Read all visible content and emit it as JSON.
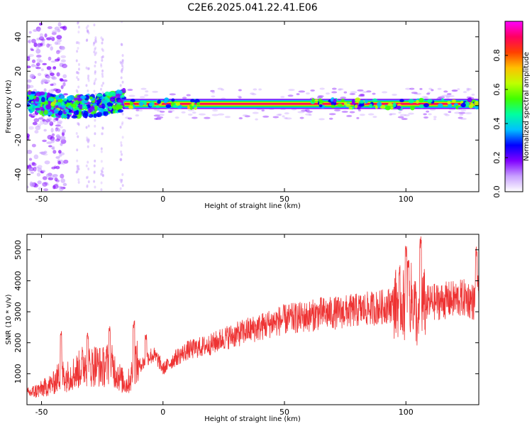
{
  "figure": {
    "title": "C2E6.2025.041.22.41.E06"
  },
  "chart_data": [
    {
      "type": "heatmap",
      "title": "C2E6.2025.041.22.41.E06",
      "xlabel": "Height of straight line (km)",
      "ylabel": "Frequency (Hz)",
      "xlim": [
        -56,
        130
      ],
      "ylim": [
        -50,
        49
      ],
      "xticks": [
        -50,
        0,
        50,
        100
      ],
      "yticks": [
        -40,
        -20,
        0,
        20,
        40
      ],
      "colorbar": {
        "label": "Normalized spectral amplitude",
        "range": [
          0,
          1
        ],
        "ticks": [
          0.0,
          0.2,
          0.4,
          0.6,
          0.8
        ],
        "colormap": [
          "#ffffff",
          "#c8a0ff",
          "#8000ff",
          "#0000ff",
          "#00c0ff",
          "#00ffa0",
          "#40ff00",
          "#c0ff00",
          "#ffc000",
          "#ff4000",
          "#ff0060",
          "#ff00ff"
        ]
      },
      "features": [
        {
          "x_start": -56,
          "x_end": -16,
          "freq_center": 0,
          "freq_halfwidth": 6,
          "amplitude": 0.4,
          "note": "scattered broadband segment"
        },
        {
          "x_start": -16,
          "x_end": 130,
          "freq_center": 1,
          "freq_halfwidth": 1.5,
          "amplitude": 0.9,
          "note": "narrow tone line"
        },
        {
          "x_start": -56,
          "x_end": -42,
          "freq_center": 0,
          "freq_halfwidth": 49,
          "amplitude": 0.15,
          "note": "faint scattered noise"
        }
      ]
    },
    {
      "type": "line",
      "xlabel": "Height of straight line (km)",
      "ylabel": "SNR (10 * v/v)",
      "xlim": [
        -56,
        130
      ],
      "ylim": [
        0,
        5500
      ],
      "xticks": [
        -50,
        0,
        50,
        100
      ],
      "yticks": [
        1000,
        2000,
        3000,
        4000,
        5000
      ],
      "series": [
        {
          "color": "#ee3333",
          "x": [
            -56,
            -50,
            -45,
            -42,
            -40,
            -35,
            -32,
            -30,
            -28,
            -25,
            -22,
            -20,
            -17,
            -15,
            -13,
            -12,
            -10,
            -8,
            -6,
            -4,
            -2,
            0,
            5,
            10,
            15,
            20,
            25,
            30,
            35,
            40,
            45,
            50,
            55,
            60,
            65,
            70,
            75,
            80,
            85,
            90,
            95,
            98,
            100,
            102,
            104,
            105,
            106,
            108,
            110,
            115,
            120,
            125,
            128,
            130
          ],
          "y": [
            350,
            500,
            700,
            1000,
            900,
            1100,
            1350,
            1200,
            1300,
            1200,
            1350,
            1150,
            800,
            650,
            900,
            1500,
            1250,
            1350,
            1550,
            1600,
            1450,
            1150,
            1500,
            1750,
            1850,
            1950,
            2150,
            2250,
            2400,
            2500,
            2650,
            2750,
            2800,
            2850,
            2950,
            2950,
            3000,
            3050,
            3100,
            3150,
            3250,
            3350,
            3150,
            3450,
            3150,
            2400,
            3350,
            3250,
            3300,
            3350,
            3400,
            3450,
            3300,
            3600
          ],
          "peaks_x": [
            -42,
            -31,
            -22,
            -12,
            -7,
            100,
            101,
            106,
            129
          ],
          "peaks_y": [
            2450,
            2350,
            2550,
            2750,
            2300,
            5250,
            4900,
            5500,
            5100
          ]
        }
      ]
    }
  ]
}
